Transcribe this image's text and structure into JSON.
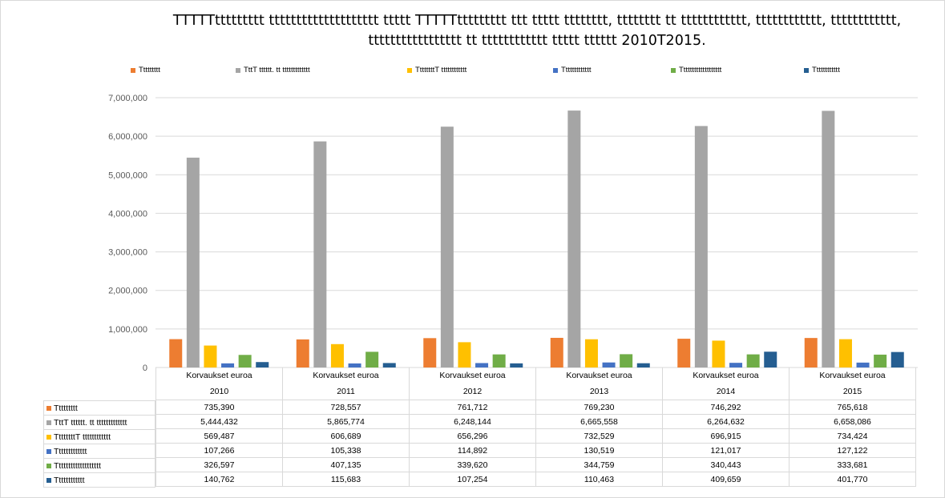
{
  "chart_data": {
    "type": "bar",
    "title": "TTTTTttttttttt tttttttttttttttttttt ttttt TTTTTttttttttt ttt ttttt tttttttt, tttttttt tt tttttttttttt, tttttttttttt, tttttttttttt, ttttttttttttttttt tt tttttttttttt ttttt tttttt 2010T2015.",
    "category_group_label": "Korvaukset euroa",
    "categories": [
      "2010",
      "2011",
      "2012",
      "2013",
      "2014",
      "2015"
    ],
    "ylim": [
      0,
      7000000
    ],
    "yticks": [
      "0",
      "1,000,000",
      "2,000,000",
      "3,000,000",
      "4,000,000",
      "5,000,000",
      "6,000,000",
      "7,000,000"
    ],
    "ytick_values": [
      0,
      1000000,
      2000000,
      3000000,
      4000000,
      5000000,
      6000000,
      7000000
    ],
    "grid": true,
    "legend_position": "top",
    "series": [
      {
        "name": "Ttttttttt",
        "color": "#ED7D31",
        "values": [
          735390,
          728557,
          761712,
          769230,
          746292,
          765618
        ],
        "labels": [
          "735,390",
          "728,557",
          "761,712",
          "769,230",
          "746,292",
          "765,618"
        ]
      },
      {
        "name": "TttT tttttt. tt ttttttttttttt",
        "color": "#A5A5A5",
        "values": [
          5444432,
          5865774,
          6248144,
          6665558,
          6264632,
          6658086
        ],
        "labels": [
          "5,444,432",
          "5,865,774",
          "6,248,144",
          "6,665,558",
          "6,264,632",
          "6,658,086"
        ]
      },
      {
        "name": "TtttttttT tttttttttttt",
        "color": "#FFC000",
        "values": [
          569487,
          606689,
          656296,
          732529,
          696915,
          734424
        ],
        "labels": [
          "569,487",
          "606,689",
          "656,296",
          "732,529",
          "696,915",
          "734,424"
        ]
      },
      {
        "name": "Ttttttttttttt",
        "color": "#4472C4",
        "values": [
          107266,
          105338,
          114892,
          130519,
          121017,
          127122
        ],
        "labels": [
          "107,266",
          "105,338",
          "114,892",
          "130,519",
          "121,017",
          "127,122"
        ]
      },
      {
        "name": "Ttttttttttttttttttt",
        "color": "#70AD47",
        "values": [
          326597,
          407135,
          339620,
          344759,
          340443,
          333681
        ],
        "labels": [
          "326,597",
          "407,135",
          "339,620",
          "344,759",
          "340,443",
          "333,681"
        ]
      },
      {
        "name": "Tttttttttttt",
        "color": "#255E91",
        "values": [
          140762,
          115683,
          107254,
          110463,
          409659,
          401770
        ],
        "labels": [
          "140,762",
          "115,683",
          "107,254",
          "110,463",
          "409,659",
          "401,770"
        ]
      }
    ]
  }
}
